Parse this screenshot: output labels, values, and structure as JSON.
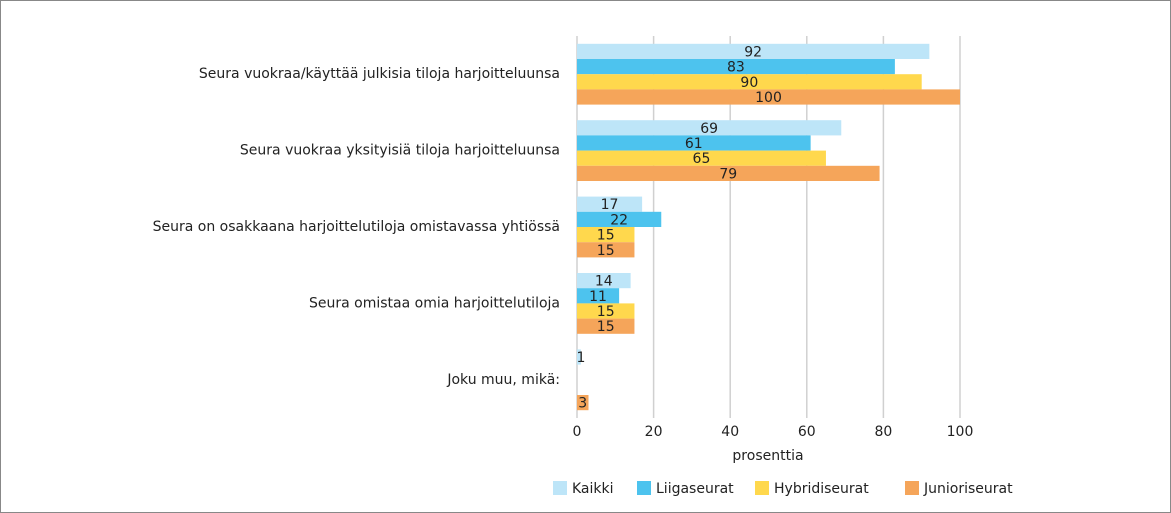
{
  "chart_data": {
    "type": "hbar",
    "categories": [
      "Seura vuokraa/käyttää julkisia tiloja harjoitteluunsa",
      "Seura vuokraa yksityisiä tiloja harjoitteluunsa",
      "Seura on osakkaana harjoittelutiloja omistavassa yhtiössä",
      "Seura omistaa omia harjoittelutiloja",
      "Joku muu, mikä:"
    ],
    "series": [
      {
        "name": "Kaikki",
        "color": "#bde5f8",
        "values": [
          92,
          69,
          17,
          14,
          1
        ]
      },
      {
        "name": "Liigaseurat",
        "color": "#4dc3ee",
        "values": [
          83,
          61,
          22,
          11,
          null
        ]
      },
      {
        "name": "Hybridiseurat",
        "color": "#ffd84d",
        "values": [
          90,
          65,
          15,
          15,
          null
        ]
      },
      {
        "name": "Junioriseurat",
        "color": "#f5a55a",
        "values": [
          100,
          79,
          15,
          15,
          3
        ]
      }
    ],
    "xlabel": "prosenttia",
    "xlim": [
      0,
      100
    ],
    "xticks": [
      0,
      20,
      40,
      60,
      80,
      100
    ],
    "grid": true,
    "legend": "bottom"
  }
}
